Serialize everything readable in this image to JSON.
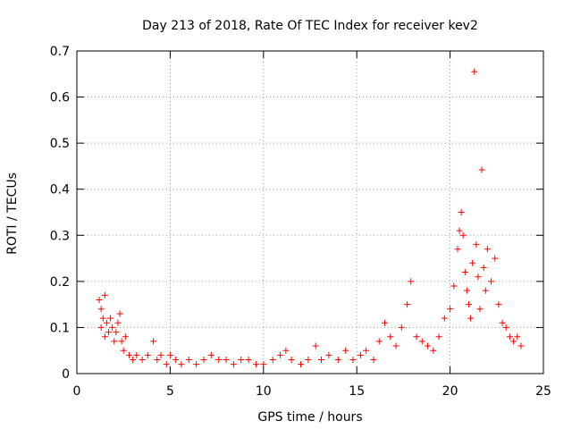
{
  "chart_data": {
    "type": "scatter",
    "title": "Day 213 of 2018, Rate Of TEC Index for receiver kev2",
    "xlabel": "GPS time / hours",
    "ylabel": "ROTI / TECUs",
    "xlim": [
      0,
      25
    ],
    "ylim": [
      0,
      0.7
    ],
    "x_ticks": [
      "0",
      "5",
      "10",
      "15",
      "20",
      "25"
    ],
    "y_ticks": [
      "0",
      "0.1",
      "0.2",
      "0.3",
      "0.4",
      "0.5",
      "0.6",
      "0.7"
    ],
    "grid": true,
    "marker": "+",
    "color": "#ff0000",
    "series": [
      {
        "points": [
          [
            1.2,
            0.16
          ],
          [
            1.3,
            0.14
          ],
          [
            1.3,
            0.1
          ],
          [
            1.4,
            0.12
          ],
          [
            1.5,
            0.17
          ],
          [
            1.5,
            0.08
          ],
          [
            1.6,
            0.11
          ],
          [
            1.7,
            0.09
          ],
          [
            1.8,
            0.12
          ],
          [
            1.9,
            0.1
          ],
          [
            2.0,
            0.07
          ],
          [
            2.1,
            0.09
          ],
          [
            2.2,
            0.11
          ],
          [
            2.3,
            0.13
          ],
          [
            2.4,
            0.07
          ],
          [
            2.5,
            0.05
          ],
          [
            2.6,
            0.08
          ],
          [
            2.8,
            0.04
          ],
          [
            3.0,
            0.03
          ],
          [
            3.2,
            0.04
          ],
          [
            3.5,
            0.03
          ],
          [
            3.8,
            0.04
          ],
          [
            4.1,
            0.07
          ],
          [
            4.3,
            0.03
          ],
          [
            4.5,
            0.04
          ],
          [
            4.8,
            0.02
          ],
          [
            5.0,
            0.04
          ],
          [
            5.3,
            0.03
          ],
          [
            5.6,
            0.02
          ],
          [
            6.0,
            0.03
          ],
          [
            6.4,
            0.02
          ],
          [
            6.8,
            0.03
          ],
          [
            7.2,
            0.04
          ],
          [
            7.6,
            0.03
          ],
          [
            8.0,
            0.03
          ],
          [
            8.4,
            0.02
          ],
          [
            8.8,
            0.03
          ],
          [
            9.2,
            0.03
          ],
          [
            9.6,
            0.02
          ],
          [
            10.0,
            0.02
          ],
          [
            10.5,
            0.03
          ],
          [
            10.9,
            0.04
          ],
          [
            11.2,
            0.05
          ],
          [
            11.5,
            0.03
          ],
          [
            12.0,
            0.02
          ],
          [
            12.4,
            0.03
          ],
          [
            12.8,
            0.06
          ],
          [
            13.1,
            0.03
          ],
          [
            13.5,
            0.04
          ],
          [
            14.0,
            0.03
          ],
          [
            14.4,
            0.05
          ],
          [
            14.8,
            0.03
          ],
          [
            15.2,
            0.04
          ],
          [
            15.5,
            0.05
          ],
          [
            15.9,
            0.03
          ],
          [
            16.2,
            0.07
          ],
          [
            16.5,
            0.11
          ],
          [
            16.8,
            0.08
          ],
          [
            17.1,
            0.06
          ],
          [
            17.4,
            0.1
          ],
          [
            17.7,
            0.15
          ],
          [
            17.9,
            0.2
          ],
          [
            18.2,
            0.08
          ],
          [
            18.5,
            0.07
          ],
          [
            18.8,
            0.06
          ],
          [
            19.1,
            0.05
          ],
          [
            19.4,
            0.08
          ],
          [
            19.7,
            0.12
          ],
          [
            20.0,
            0.14
          ],
          [
            20.2,
            0.19
          ],
          [
            20.4,
            0.27
          ],
          [
            20.5,
            0.31
          ],
          [
            20.6,
            0.35
          ],
          [
            20.7,
            0.3
          ],
          [
            20.8,
            0.22
          ],
          [
            20.9,
            0.18
          ],
          [
            21.0,
            0.15
          ],
          [
            21.1,
            0.12
          ],
          [
            21.2,
            0.24
          ],
          [
            21.3,
            0.655
          ],
          [
            21.4,
            0.28
          ],
          [
            21.5,
            0.21
          ],
          [
            21.6,
            0.14
          ],
          [
            21.7,
            0.442
          ],
          [
            21.8,
            0.23
          ],
          [
            21.9,
            0.18
          ],
          [
            22.0,
            0.27
          ],
          [
            22.2,
            0.2
          ],
          [
            22.4,
            0.25
          ],
          [
            22.6,
            0.15
          ],
          [
            22.8,
            0.11
          ],
          [
            23.0,
            0.1
          ],
          [
            23.2,
            0.08
          ],
          [
            23.4,
            0.07
          ],
          [
            23.6,
            0.08
          ],
          [
            23.8,
            0.06
          ]
        ]
      }
    ]
  }
}
